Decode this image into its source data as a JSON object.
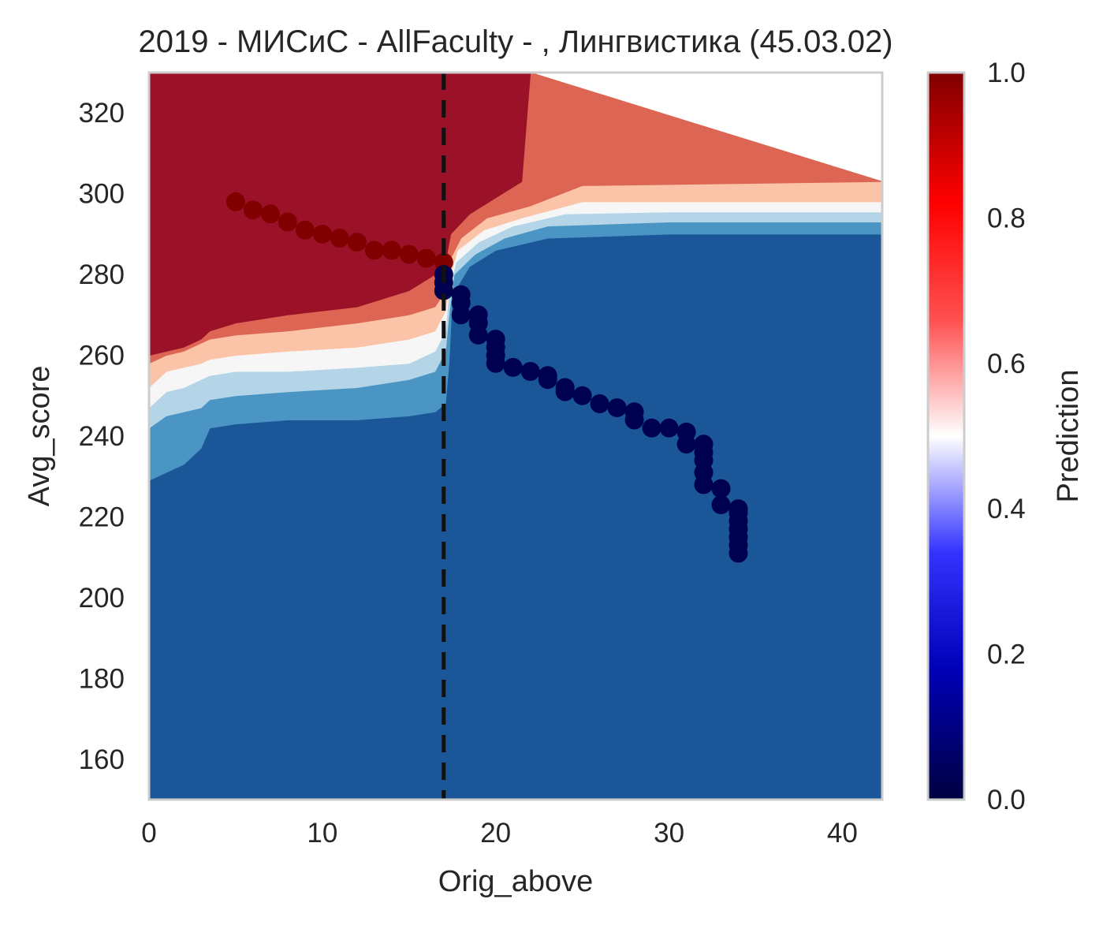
{
  "chart_data": {
    "type": "heatmap",
    "title": "2019 - МИСиС - AllFaculty - , Лингвистика (45.03.02)",
    "xlabel": "Orig_above",
    "ylabel": "Avg_score",
    "colorbar_label": "Prediction",
    "xlim": [
      0,
      42.3
    ],
    "ylim": [
      150,
      330
    ],
    "xticks": [
      0,
      10,
      20,
      30,
      40
    ],
    "yticks": [
      160,
      180,
      200,
      220,
      240,
      260,
      280,
      300,
      320
    ],
    "colorbar_ticks": [
      0.0,
      0.2,
      0.4,
      0.6,
      0.8,
      1.0
    ],
    "colorbar_tick_labels": [
      "0.0",
      "0.2",
      "0.4",
      "0.6",
      "0.8",
      "1.0"
    ],
    "grid": false,
    "threshold_x": 17,
    "contour_levels": [
      0.0,
      0.1,
      0.2,
      0.3,
      0.4,
      0.5,
      0.6,
      0.7,
      0.8,
      0.9,
      1.0
    ],
    "contour_colors": [
      "#1b5798",
      "#4b95c5",
      "#b4d5e7",
      "#f6f6f6",
      "#fbc4a9",
      "#dc6653",
      "#9b1127"
    ],
    "boundaries": {
      "b1": [
        [
          0,
          229
        ],
        [
          1,
          231
        ],
        [
          2,
          233
        ],
        [
          3,
          237
        ],
        [
          3.5,
          242
        ],
        [
          5,
          243
        ],
        [
          8,
          244
        ],
        [
          12,
          244
        ],
        [
          15,
          245
        ],
        [
          16.5,
          246
        ],
        [
          17.1,
          248
        ],
        [
          17.3,
          258
        ],
        [
          17.5,
          275
        ],
        [
          18.5,
          282
        ],
        [
          20,
          286
        ],
        [
          23,
          289
        ],
        [
          30,
          290
        ],
        [
          42.3,
          290
        ]
      ],
      "b2": [
        [
          0,
          242
        ],
        [
          1,
          245
        ],
        [
          2,
          246
        ],
        [
          3,
          247
        ],
        [
          3.5,
          249
        ],
        [
          5,
          250
        ],
        [
          8,
          251
        ],
        [
          12,
          252
        ],
        [
          15,
          254
        ],
        [
          16.5,
          256
        ],
        [
          17.1,
          261
        ],
        [
          17.3,
          270
        ],
        [
          17.6,
          280
        ],
        [
          18.8,
          285
        ],
        [
          20.5,
          289
        ],
        [
          23,
          292
        ],
        [
          30,
          293
        ],
        [
          42.3,
          293
        ]
      ],
      "b3": [
        [
          0,
          247
        ],
        [
          1,
          251
        ],
        [
          2,
          252
        ],
        [
          3,
          254
        ],
        [
          3.5,
          255
        ],
        [
          5,
          256
        ],
        [
          8,
          256
        ],
        [
          12,
          257
        ],
        [
          15,
          258
        ],
        [
          16.5,
          261
        ],
        [
          17.1,
          266
        ],
        [
          17.3,
          276
        ],
        [
          17.7,
          283
        ],
        [
          19,
          288
        ],
        [
          21,
          292
        ],
        [
          24,
          295
        ],
        [
          30,
          295.5
        ],
        [
          42.3,
          295.5
        ]
      ],
      "b4": [
        [
          0,
          252
        ],
        [
          1,
          256
        ],
        [
          2,
          257
        ],
        [
          3,
          258
        ],
        [
          3.5,
          259
        ],
        [
          5,
          260
        ],
        [
          8,
          261
        ],
        [
          12,
          262
        ],
        [
          15,
          264
        ],
        [
          16.5,
          266
        ],
        [
          17.1,
          271
        ],
        [
          17.4,
          280
        ],
        [
          17.8,
          286
        ],
        [
          19.3,
          291
        ],
        [
          21.5,
          294
        ],
        [
          25,
          298
        ],
        [
          42.3,
          298
        ]
      ],
      "b5": [
        [
          0,
          258
        ],
        [
          1,
          260
        ],
        [
          2,
          261
        ],
        [
          3,
          263
        ],
        [
          3.5,
          264
        ],
        [
          5,
          265
        ],
        [
          8,
          266
        ],
        [
          12,
          268
        ],
        [
          15,
          270
        ],
        [
          16.5,
          272
        ],
        [
          17.1,
          276
        ],
        [
          17.4,
          284
        ],
        [
          18,
          289
        ],
        [
          19.5,
          294
        ],
        [
          22,
          297
        ],
        [
          25,
          302
        ],
        [
          42.3,
          303
        ]
      ],
      "b6": [
        [
          0,
          260
        ],
        [
          2,
          262
        ],
        [
          3,
          264
        ],
        [
          3.5,
          266
        ],
        [
          5,
          268
        ],
        [
          8,
          270
        ],
        [
          12,
          272
        ],
        [
          15,
          276
        ],
        [
          16.5,
          280
        ],
        [
          17.1,
          283
        ],
        [
          17.4,
          290
        ],
        [
          18.5,
          295
        ],
        [
          20,
          299
        ],
        [
          21.5,
          303
        ],
        [
          22,
          330
        ]
      ]
    },
    "series": [
      {
        "values_x": [
          5,
          6,
          7,
          8,
          9,
          10,
          11,
          12,
          13,
          14,
          15,
          16,
          17
        ],
        "values_y": [
          298,
          296,
          295,
          293,
          291,
          290,
          289,
          288,
          286,
          286,
          285,
          284,
          283
        ],
        "color": "#800000"
      },
      {
        "values_x": [
          17,
          17,
          17,
          18,
          18,
          18,
          19,
          19,
          19,
          20,
          20,
          20,
          20,
          21,
          22,
          23,
          23,
          24,
          24,
          25,
          26,
          27,
          28,
          28,
          29,
          30,
          31,
          31,
          32,
          32,
          32,
          32,
          32,
          33,
          33,
          34,
          34,
          34,
          34,
          34,
          34,
          34
        ],
        "values_y": [
          276,
          278,
          280,
          270,
          273,
          275,
          265,
          268,
          270,
          258,
          260,
          262,
          264,
          257,
          256,
          255,
          254,
          251,
          252,
          250,
          248,
          247,
          244,
          246,
          242,
          242,
          238,
          241,
          228,
          231,
          234,
          236,
          238,
          223,
          227,
          211,
          213,
          215,
          217,
          219,
          221,
          222
        ],
        "color": "#000050"
      }
    ]
  }
}
